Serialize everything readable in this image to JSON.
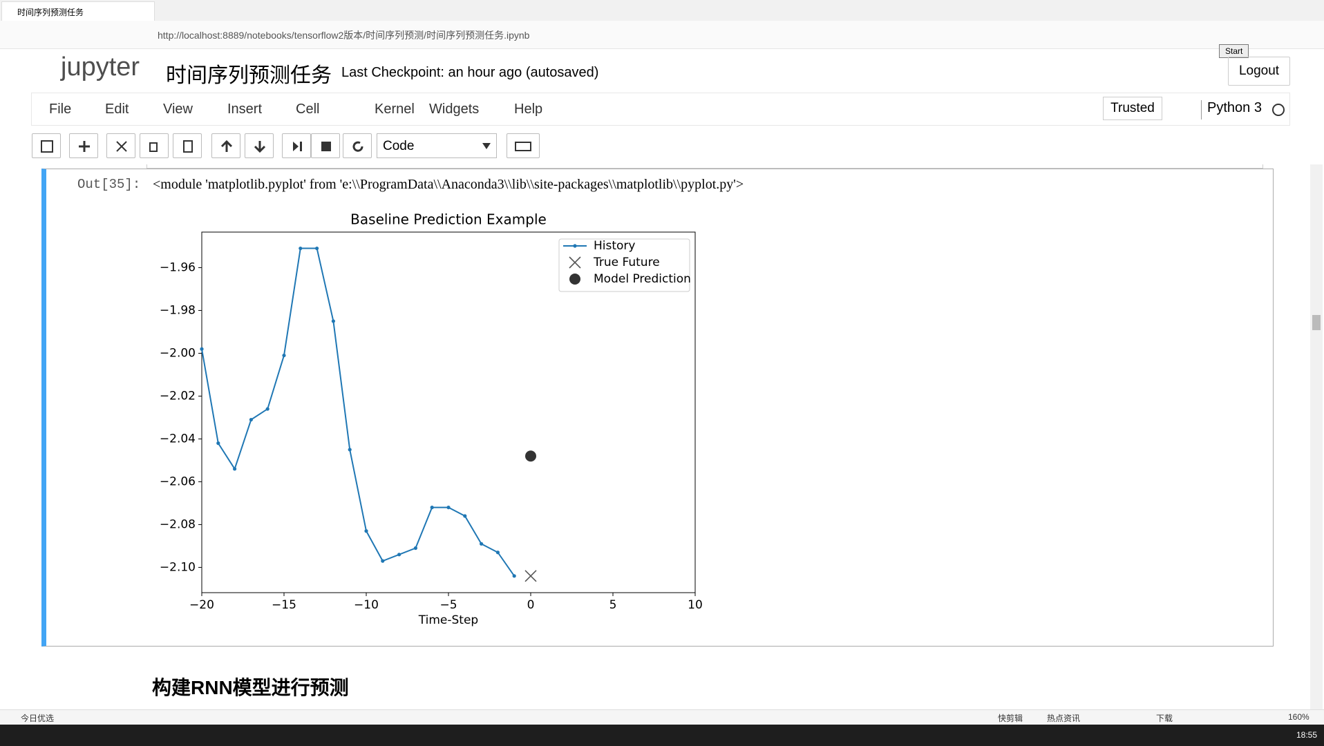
{
  "browser": {
    "tab_title": "时间序列预测任务",
    "url": "http://localhost:8889/notebooks/tensorflow2版本/时间序列预测/时间序列预测任务.ipynb",
    "tooltip": "Start"
  },
  "header": {
    "logo": "jupyter",
    "notebook_title": "时间序列预测任务",
    "checkpoint": "Last Checkpoint: an hour ago (autosaved)",
    "logout": "Logout"
  },
  "menu": {
    "items": [
      "File",
      "Edit",
      "View",
      "Insert",
      "Cell",
      "Kernel",
      "Widgets",
      "Help"
    ],
    "trusted": "Trusted",
    "kernel": "Python 3"
  },
  "toolbar": {
    "cell_type": "Code"
  },
  "cell": {
    "prompt": "Out[35]:",
    "output": "<module 'matplotlib.pyplot' from 'e:\\\\ProgramData\\\\Anaconda3\\\\lib\\\\site-packages\\\\matplotlib\\\\pyplot.py'>"
  },
  "chart_data": {
    "type": "line",
    "title": "Baseline Prediction Example",
    "x_label": "Time-Step",
    "xlim": [
      -20,
      10
    ],
    "xticks": [
      {
        "value": -20,
        "label": "−20"
      },
      {
        "value": -15,
        "label": "−15"
      },
      {
        "value": -10,
        "label": "−10"
      },
      {
        "value": -5,
        "label": "−5"
      },
      0,
      5,
      10
    ],
    "ylim": [
      -2.1118,
      -1.9434
    ],
    "yticks": [
      {
        "value": -2.1,
        "label": "−2.10"
      },
      {
        "value": -2.08,
        "label": "−2.08"
      },
      {
        "value": -2.06,
        "label": "−2.06"
      },
      {
        "value": -2.04,
        "label": "−2.04"
      },
      {
        "value": -2.02,
        "label": "−2.02"
      },
      {
        "value": -2.0,
        "label": "−2.00"
      },
      {
        "value": -1.98,
        "label": "−1.98"
      },
      {
        "value": -1.96,
        "label": "−1.96"
      }
    ],
    "grid": false,
    "legend": "upper right",
    "series": [
      {
        "name": "History",
        "color": "#1f77b4",
        "marker": "dot",
        "x": [
          -20,
          -19,
          -18,
          -17,
          -16,
          -15,
          -14,
          -13,
          -12,
          -11,
          -10,
          -9,
          -8,
          -7,
          -6,
          -5,
          -4,
          -3,
          -2,
          -1
        ],
        "values": [
          -1.998,
          -2.042,
          -2.054,
          -2.031,
          -2.026,
          -2.001,
          -1.951,
          -1.951,
          -1.985,
          -2.045,
          -2.083,
          -2.097,
          -2.094,
          -2.091,
          -2.072,
          -2.072,
          -2.076,
          -2.089,
          -2.093,
          -2.104
        ]
      },
      {
        "name": "True Future",
        "color": "#555555",
        "marker": "x",
        "x": [
          0
        ],
        "values": [
          -2.104
        ]
      },
      {
        "name": "Model Prediction",
        "color": "#333333",
        "marker": "o",
        "x": [
          0
        ],
        "values": [
          -2.048
        ]
      }
    ]
  },
  "markdown": {
    "heading": "构建RNN模型进行预测"
  },
  "status_bar": {
    "left": "今日优选",
    "items": [
      "快剪辑",
      "热点资讯",
      "下载"
    ],
    "zoom": "160%"
  },
  "taskbar": {
    "time": "18:55"
  }
}
